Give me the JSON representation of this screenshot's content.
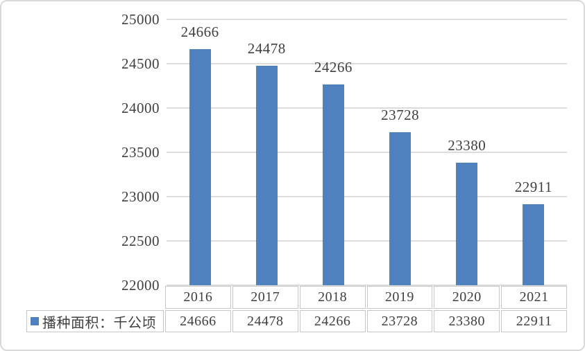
{
  "legend": {
    "label": "播种面积：千公顷",
    "marker_color": "#4e81bd"
  },
  "colors": {
    "bar": "#4e81bd",
    "gridline": "#dcdcdc",
    "table_border": "#c6c6c6",
    "text": "#404040"
  },
  "chart_data": {
    "type": "bar",
    "title": "",
    "xlabel": "",
    "ylabel": "",
    "categories": [
      "2016",
      "2017",
      "2018",
      "2019",
      "2020",
      "2021"
    ],
    "series": [
      {
        "name": "播种面积：千公顷",
        "values": [
          24666,
          24478,
          24266,
          23728,
          23380,
          22911
        ]
      }
    ],
    "value_labels_shown": true,
    "data_table_shown": true,
    "legend_position": "bottom-left",
    "grid": "horizontal",
    "ylim": [
      22000,
      25000
    ],
    "ytick_step": 500,
    "yticks": [
      25000,
      24500,
      24000,
      23500,
      23000,
      22500,
      22000
    ]
  }
}
